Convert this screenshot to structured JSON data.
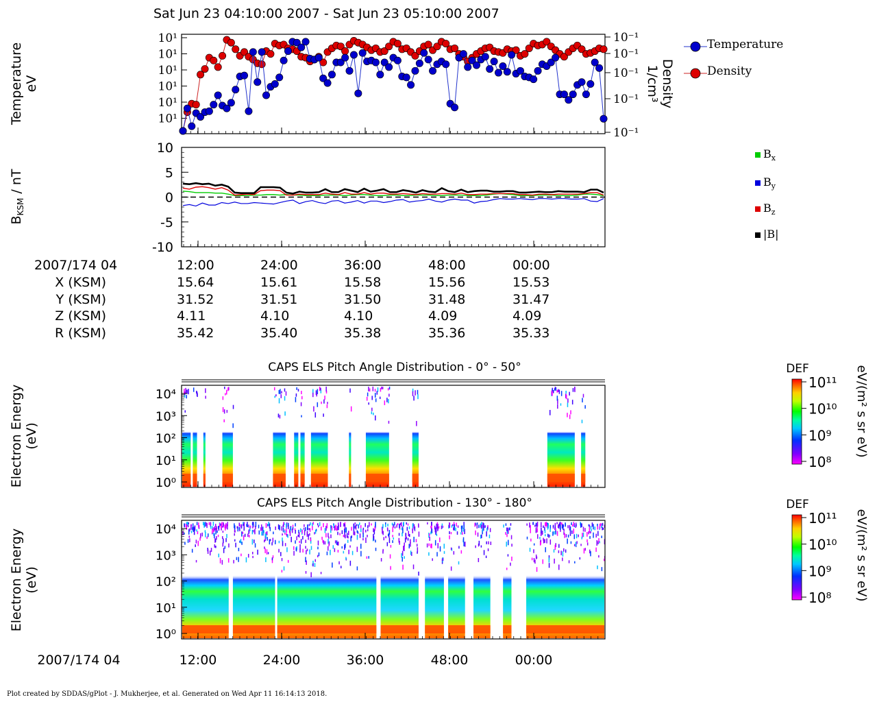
{
  "plot_title": "Sat Jun 23 04:10:00 2007 - Sat Jun 23 05:10:00 2007",
  "footer": "Plot created by SDDAS/gPlot - J. Mukherjee, et al.  Generated on Wed Apr 11 16:14:13 2018.",
  "ephemeris": {
    "header": "2007/174 04",
    "rows": [
      {
        "label": "X (KSM)",
        "values": [
          "15.64",
          "15.61",
          "15.58",
          "15.56",
          "15.53"
        ]
      },
      {
        "label": "Y (KSM)",
        "values": [
          "31.52",
          "31.51",
          "31.50",
          "31.48",
          "31.47"
        ]
      },
      {
        "label": "Z (KSM)",
        "values": [
          "4.11",
          "4.10",
          "4.10",
          "4.09",
          "4.09"
        ]
      },
      {
        "label": "R (KSM)",
        "values": [
          "35.42",
          "35.40",
          "35.38",
          "35.36",
          "35.33"
        ]
      }
    ]
  },
  "colors": {
    "temperature": "#0000cc",
    "density": "#dd0000",
    "bx": "#00cc00",
    "by": "#0000dd",
    "bz": "#dd0000",
    "bmag": "#000000"
  },
  "chart_data": [
    {
      "type": "scatter",
      "ylabel_lines": [
        "Temperature",
        "eV"
      ],
      "y2label_lines": [
        "Density",
        "1/cm³"
      ],
      "y_ticks": [
        "10¹",
        "10¹",
        "10¹",
        "10¹",
        "10¹",
        "10¹"
      ],
      "y2_ticks": [
        "10⁻¹",
        "10⁻¹",
        "10⁻¹",
        "10⁻¹",
        "10⁻¹"
      ],
      "x_ticks": [
        "12:00",
        "24:00",
        "36:00",
        "48:00",
        "00:00"
      ],
      "legend": [
        "Temperature",
        "Density"
      ],
      "series": [
        {
          "name": "Temperature",
          "values": [
            0.0,
            0.24,
            0.05,
            0.19,
            0.15,
            0.2,
            0.21,
            0.28,
            0.38,
            0.27,
            0.24,
            0.3,
            0.44,
            0.58,
            0.59,
            0.21,
            0.84,
            0.52,
            0.84,
            0.38,
            0.47,
            0.5,
            0.57,
            0.75,
            0.85,
            0.95,
            0.94,
            0.89,
            0.95,
            0.77,
            0.76,
            0.78,
            0.56,
            0.51,
            0.6,
            0.73,
            0.73,
            0.78,
            0.64,
            0.81,
            0.4,
            0.83,
            0.74,
            0.75,
            0.73,
            0.6,
            0.73,
            0.68,
            0.78,
            0.75,
            0.58,
            0.57,
            0.49,
            0.64,
            0.72,
            0.83,
            0.76,
            0.64,
            0.71,
            0.74,
            0.71,
            0.29,
            0.25,
            0.78,
            0.82,
            0.68,
            0.75,
            0.7,
            0.76,
            0.79,
            0.66,
            0.74,
            0.62,
            0.69,
            0.63,
            0.81,
            0.61,
            0.64,
            0.58,
            0.57,
            0.55,
            0.64,
            0.71,
            0.69,
            0.73,
            0.78,
            0.39,
            0.39,
            0.33,
            0.39,
            0.49,
            0.52,
            0.39,
            0.5,
            0.73,
            0.67,
            0.13
          ]
        },
        {
          "name": "Density",
          "values": [
            0.0,
            0.2,
            0.29,
            0.28,
            0.6,
            0.66,
            0.78,
            0.75,
            0.68,
            0.8,
            0.97,
            0.94,
            0.87,
            0.8,
            0.84,
            0.79,
            0.76,
            0.72,
            0.71,
            0.85,
            0.82,
            0.93,
            0.91,
            0.92,
            0.88,
            0.87,
            0.85,
            0.79,
            0.78,
            0.74,
            0.76,
            0.79,
            0.73,
            0.84,
            0.88,
            0.91,
            0.9,
            0.85,
            0.92,
            0.96,
            0.94,
            0.92,
            0.89,
            0.86,
            0.88,
            0.84,
            0.85,
            0.9,
            0.95,
            0.93,
            0.87,
            0.88,
            0.84,
            0.8,
            0.85,
            0.9,
            0.92,
            0.86,
            0.9,
            0.95,
            0.93,
            0.87,
            0.88,
            0.82,
            0.79,
            0.74,
            0.78,
            0.82,
            0.85,
            0.88,
            0.89,
            0.85,
            0.84,
            0.83,
            0.87,
            0.85,
            0.86,
            0.8,
            0.82,
            0.88,
            0.93,
            0.91,
            0.92,
            0.95,
            0.9,
            0.86,
            0.82,
            0.79,
            0.84,
            0.88,
            0.91,
            0.87,
            0.82,
            0.83,
            0.85,
            0.88,
            0.87
          ]
        }
      ]
    },
    {
      "type": "line",
      "ylabel": "B",
      "ylabel_sub": "KSM",
      "ylabel_tail": " / nT",
      "ylim": [
        -10,
        10
      ],
      "y_ticks": [
        "10",
        "5",
        "0",
        "-5",
        "-10"
      ],
      "x_ticks": [
        "12:00",
        "24:00",
        "36:00",
        "48:00",
        "00:00"
      ],
      "legend": [
        {
          "name": "B",
          "sub": "x"
        },
        {
          "name": "B",
          "sub": "y"
        },
        {
          "name": "B",
          "sub": "z"
        },
        {
          "name": "|B|",
          "sub": ""
        }
      ],
      "series": [
        {
          "name": "Bx",
          "values": [
            1.2,
            1.1,
            0.9,
            0.9,
            0.9,
            0.8,
            0.8,
            0.6,
            0.3,
            0.3,
            0.3,
            0.4,
            0.4,
            0.5,
            0.5,
            0.4,
            0.5,
            0.4,
            0.4,
            0.3,
            0.3,
            0.3,
            0.4,
            0.4,
            0.4,
            0.3,
            0.4,
            0.5,
            0.5,
            0.4,
            0.3,
            0.3,
            0.4,
            0.4,
            0.3,
            0.3,
            0.4,
            0.4,
            0.4,
            0.3,
            0.3,
            0.4,
            0.4,
            0.4,
            0.3,
            0.3,
            0.3,
            0.4,
            0.6,
            0.7,
            0.6,
            0.5,
            0.3,
            0.3,
            0.3,
            0.4,
            0.4,
            0.4,
            0.3,
            0.3,
            0.3,
            0.4,
            0.6,
            0.6,
            0.5,
            0.3
          ]
        },
        {
          "name": "By",
          "values": [
            -1.7,
            -1.5,
            -1.8,
            -1.2,
            -1.6,
            -1.6,
            -1.1,
            -1.3,
            -1.0,
            -1.3,
            -1.3,
            -1.1,
            -1.2,
            -1.3,
            -1.4,
            -1.1,
            -0.8,
            -0.6,
            -1.3,
            -0.9,
            -0.7,
            -1.1,
            -1.3,
            -0.8,
            -0.7,
            -1.2,
            -1.0,
            -0.7,
            -1.2,
            -0.8,
            -0.8,
            -1.1,
            -0.9,
            -0.6,
            -0.5,
            -1.0,
            -0.8,
            -0.7,
            -0.4,
            -0.8,
            -1.0,
            -0.6,
            -0.4,
            -0.6,
            -0.6,
            -1.2,
            -0.9,
            -0.8,
            -0.5,
            -0.3,
            -0.4,
            -0.4,
            -0.3,
            -0.4,
            -0.5,
            -0.3,
            -0.3,
            -0.4,
            -0.3,
            -0.3,
            -0.4,
            -0.4,
            -0.3,
            -0.8,
            -0.9,
            -0.3
          ]
        },
        {
          "name": "Bz",
          "values": [
            1.8,
            1.6,
            2.0,
            2.1,
            1.9,
            1.6,
            1.9,
            1.4,
            0.4,
            0.5,
            0.6,
            0.5,
            1.3,
            1.4,
            1.4,
            1.3,
            0.4,
            0.4,
            0.6,
            0.5,
            0.5,
            0.5,
            0.8,
            0.6,
            0.5,
            0.9,
            0.6,
            0.6,
            0.9,
            0.6,
            0.8,
            0.8,
            0.6,
            0.6,
            0.7,
            0.6,
            0.5,
            0.7,
            0.6,
            0.6,
            0.7,
            0.7,
            0.6,
            0.8,
            0.5,
            0.5,
            0.6,
            0.6,
            0.7,
            0.7,
            0.7,
            0.7,
            0.5,
            0.5,
            0.4,
            0.6,
            0.6,
            0.5,
            0.6,
            0.6,
            0.6,
            0.6,
            0.7,
            0.9,
            0.9,
            0.4
          ]
        },
        {
          "name": "|B|",
          "values": [
            2.7,
            2.6,
            2.8,
            2.6,
            2.7,
            2.3,
            2.5,
            2.1,
            0.9,
            0.8,
            0.8,
            0.8,
            2.0,
            2.0,
            2.0,
            1.9,
            0.9,
            0.7,
            1.1,
            0.9,
            0.9,
            1.0,
            1.6,
            1.0,
            1.0,
            1.6,
            1.3,
            1.0,
            1.7,
            1.1,
            1.3,
            1.6,
            1.0,
            1.0,
            1.4,
            1.2,
            0.9,
            1.4,
            1.1,
            1.0,
            1.8,
            1.2,
            1.0,
            1.5,
            1.0,
            1.2,
            1.3,
            1.3,
            1.1,
            1.1,
            1.2,
            1.2,
            0.9,
            0.9,
            1.0,
            1.1,
            1.0,
            1.0,
            1.2,
            1.1,
            1.1,
            1.1,
            1.0,
            1.5,
            1.5,
            0.9
          ]
        }
      ]
    },
    {
      "type": "heatmap",
      "title": "CAPS ELS Pitch Angle Distribution - 0° - 50°",
      "ylabel_lines": [
        "Electron Energy",
        "(eV)"
      ],
      "y_ticks": [
        "10⁴",
        "10³",
        "10²",
        "10¹",
        "10⁰"
      ],
      "colorbar": {
        "label": "DEF",
        "units": "eV/(m² s sr eV)",
        "ticks": [
          "10¹¹",
          "10¹⁰",
          "10⁹",
          "10⁸"
        ]
      },
      "intervals": [
        [
          0.0,
          0.02
        ],
        [
          0.025,
          0.035
        ],
        [
          0.05,
          0.055
        ],
        [
          0.095,
          0.12
        ],
        [
          0.215,
          0.245
        ],
        [
          0.265,
          0.275
        ],
        [
          0.28,
          0.29
        ],
        [
          0.305,
          0.345
        ],
        [
          0.395,
          0.4
        ],
        [
          0.435,
          0.49
        ],
        [
          0.545,
          0.56
        ],
        [
          0.865,
          0.93
        ],
        [
          0.945,
          0.955
        ]
      ]
    },
    {
      "type": "heatmap",
      "title": "CAPS ELS Pitch Angle Distribution - 130° - 180°",
      "ylabel_lines": [
        "Electron Energy",
        "(eV)"
      ],
      "y_ticks": [
        "10⁴",
        "10³",
        "10²",
        "10¹",
        "10⁰"
      ],
      "x_ticks": [
        "12:00",
        "24:00",
        "36:00",
        "48:00",
        "00:00"
      ],
      "x_header": "2007/174 04",
      "colorbar": {
        "label": "DEF",
        "units": "eV/(m² s sr eV)",
        "ticks": [
          "10¹¹",
          "10¹⁰",
          "10⁹",
          "10⁸"
        ]
      },
      "intervals": [
        [
          0.0,
          0.11
        ],
        [
          0.12,
          0.22
        ],
        [
          0.225,
          0.46
        ],
        [
          0.47,
          0.56
        ],
        [
          0.575,
          0.62
        ],
        [
          0.63,
          0.67
        ],
        [
          0.69,
          0.73
        ],
        [
          0.76,
          0.78
        ],
        [
          0.815,
          1.0
        ]
      ]
    }
  ]
}
